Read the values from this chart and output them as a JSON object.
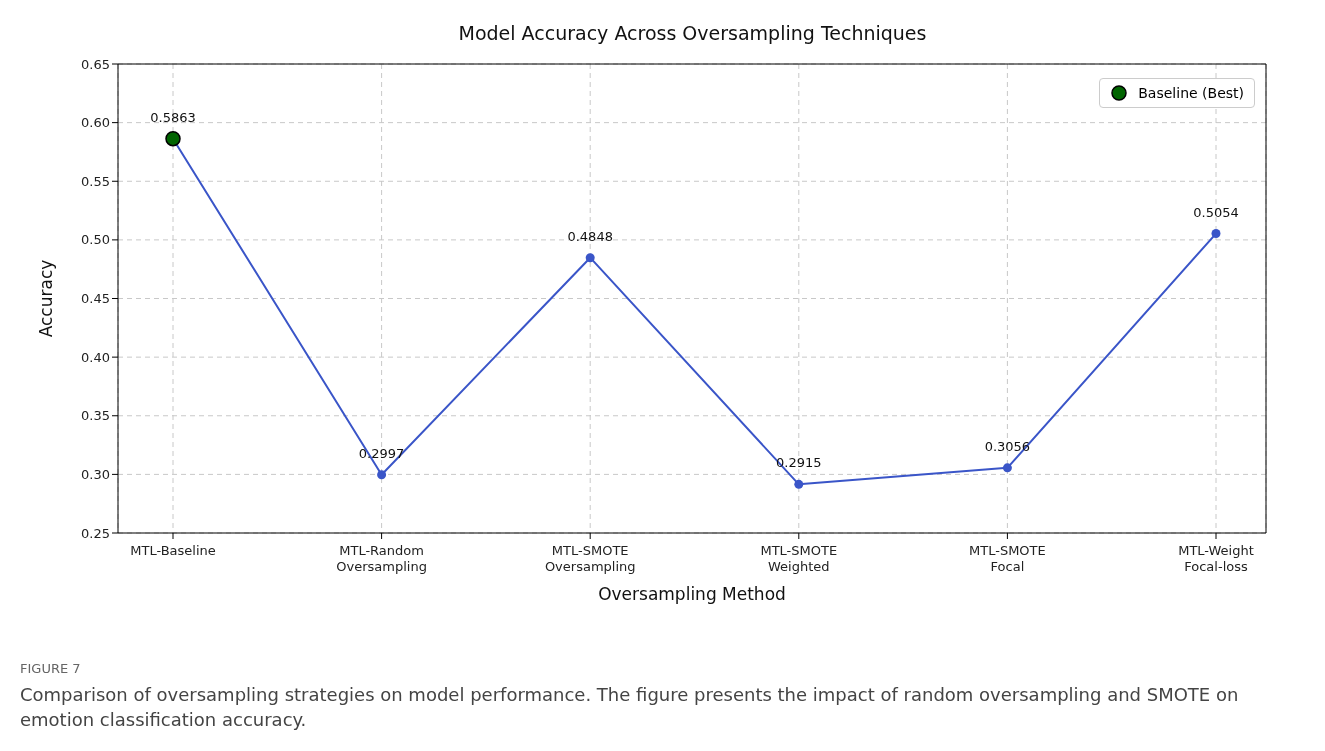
{
  "chart_data": {
    "type": "line",
    "title": "Model Accuracy Across Oversampling Techniques",
    "xlabel": "Oversampling Method",
    "ylabel": "Accuracy",
    "categories": [
      "MTL-Baseline",
      "MTL-Random\nOversampling",
      "MTL-SMOTE\nOversampling",
      "MTL-SMOTE\nWeighted",
      "MTL-SMOTE\nFocal",
      "MTL-Weight\nFocal-loss"
    ],
    "series": [
      {
        "color": "#3a55c8",
        "values": [
          0.5863,
          0.2997,
          0.4848,
          0.2915,
          0.3056,
          0.5054
        ],
        "value_labels": [
          "0.5863",
          "0.2997",
          "0.4848",
          "0.2915",
          "0.3056",
          "0.5054"
        ]
      },
      {
        "type": "scatter",
        "name": "Baseline (Best)",
        "color": "#006400",
        "x": [
          "MTL-Baseline"
        ],
        "values": [
          0.5863
        ]
      }
    ],
    "marker": "circle",
    "line_style": "solid",
    "ylim": [
      0.25,
      0.65
    ],
    "yticks": [
      {
        "value": 0.25,
        "label": "0.25"
      },
      {
        "value": 0.3,
        "label": "0.30"
      },
      {
        "value": 0.35,
        "label": "0.35"
      },
      {
        "value": 0.4,
        "label": "0.40"
      },
      {
        "value": 0.45,
        "label": "0.45"
      },
      {
        "value": 0.5,
        "label": "0.50"
      },
      {
        "value": 0.55,
        "label": "0.55"
      },
      {
        "value": 0.6,
        "label": "0.60"
      },
      {
        "value": 0.65,
        "label": "0.65"
      }
    ],
    "grid": true,
    "legend": "top right",
    "annotations": [
      "FIGURE 7",
      "Comparison of oversampling strategies on model performance. The figure presents the impact of random oversampling and SMOTE on emotion classification accuracy."
    ]
  }
}
